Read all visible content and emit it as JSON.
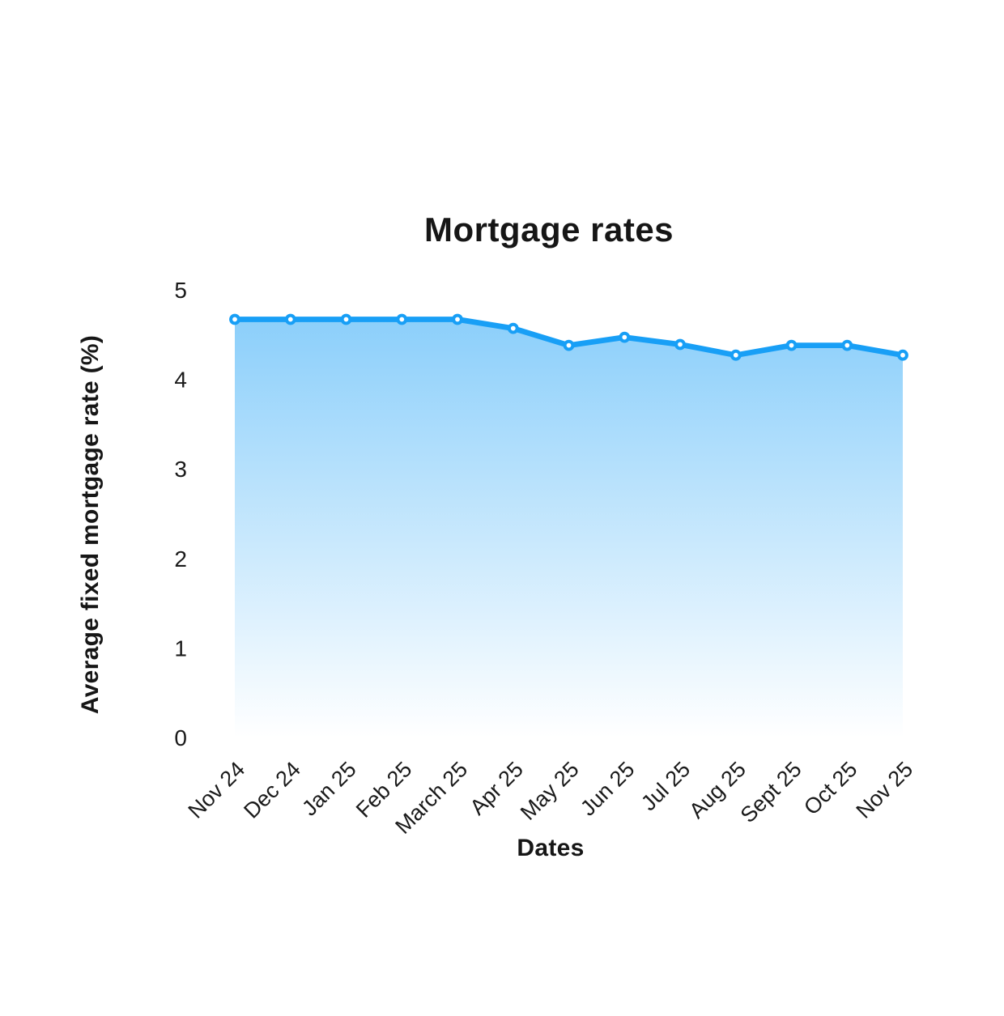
{
  "chart_data": {
    "type": "area",
    "title": "Mortgage rates",
    "xlabel": "Dates",
    "ylabel": "Average fixed mortgage rate (%)",
    "categories": [
      "Nov 24",
      "Dec 24",
      "Jan 25",
      "Feb 25",
      "March 25",
      "Apr 25",
      "May 25",
      "Jun 25",
      "Jul 25",
      "Aug 25",
      "Sept 25",
      "Oct 25",
      "Nov 25"
    ],
    "series": [
      {
        "name": "Average fixed mortgage rate",
        "values": [
          4.67,
          4.67,
          4.67,
          4.67,
          4.67,
          4.57,
          4.38,
          4.47,
          4.39,
          4.27,
          4.38,
          4.38,
          4.27
        ]
      }
    ],
    "ylim": [
      0,
      5
    ],
    "yticks": [
      0,
      1,
      2,
      3,
      4,
      5
    ],
    "grid": false,
    "legend": false,
    "marker": "circle-open",
    "colors": {
      "line": "#189ff6",
      "marker_fill": "#ffffff",
      "area_top": "rgba(24,159,246,0.5)",
      "area_bottom": "rgba(24,159,246,0)",
      "text": "#1a1a1a",
      "title_text": "#161616",
      "background": "#ffffff"
    }
  }
}
